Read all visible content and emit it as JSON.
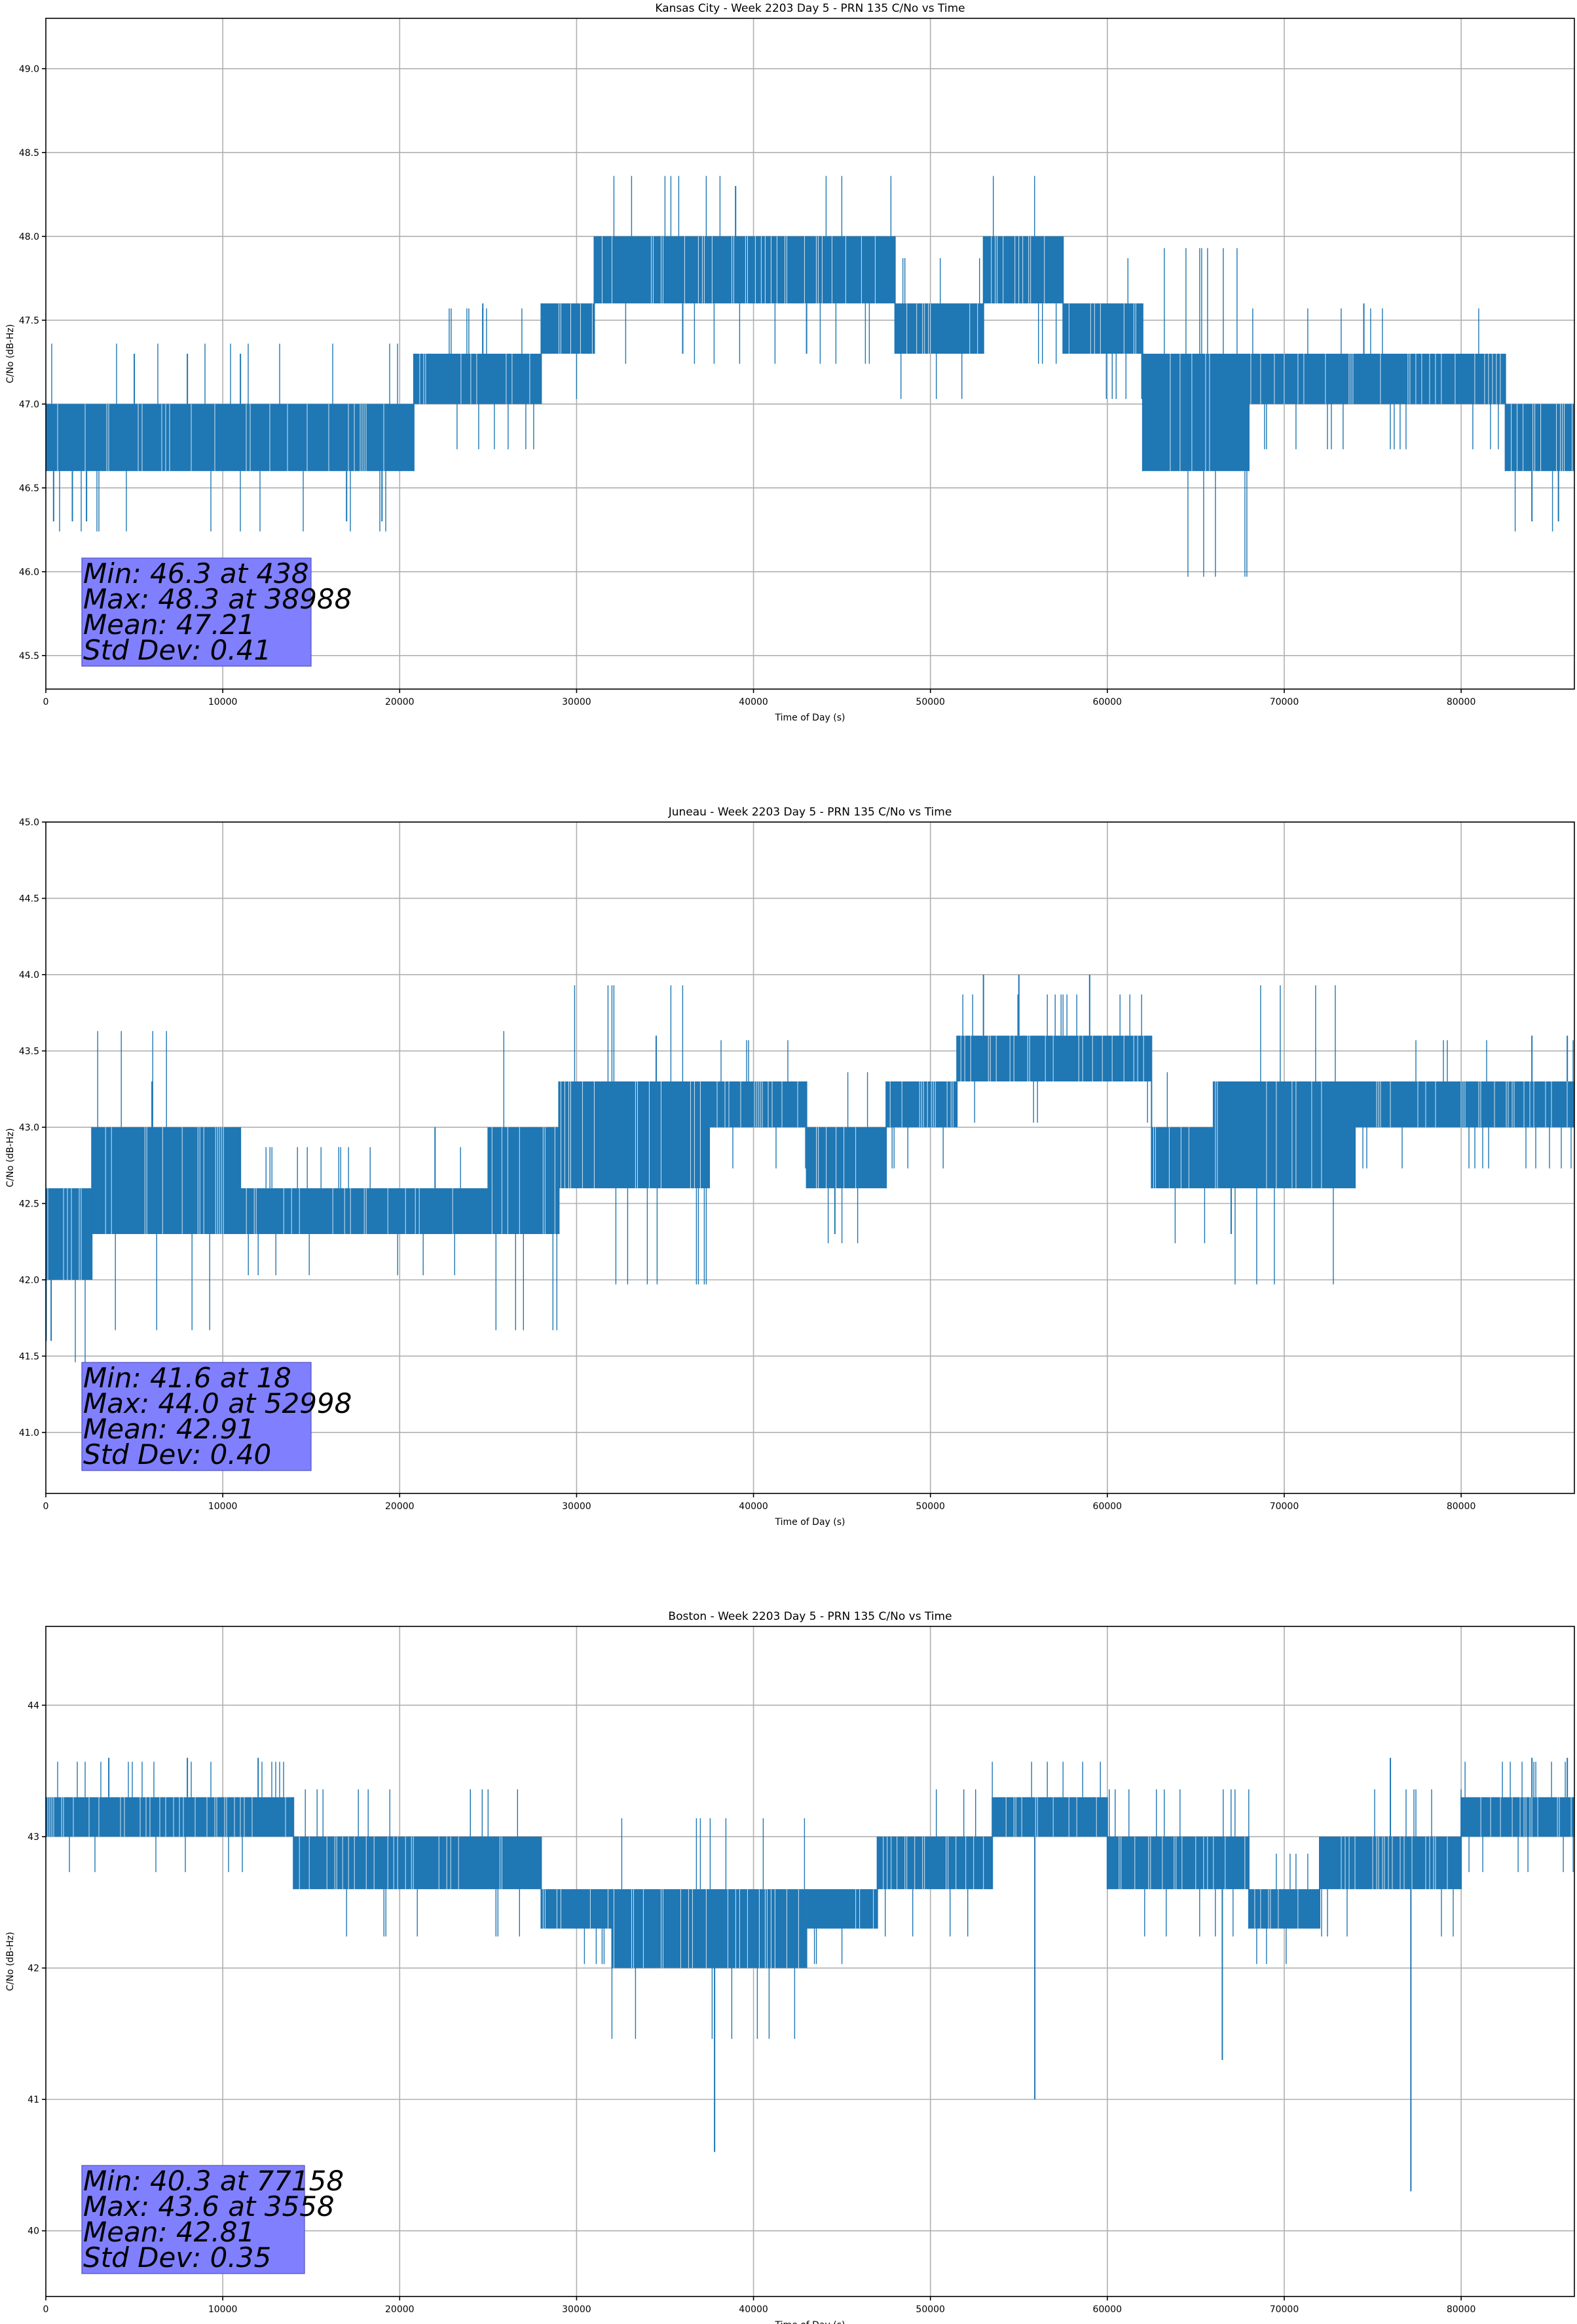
{
  "figure": {
    "line_color": "#1f77b4",
    "stats_box_color": "#8080ff"
  },
  "chart_data": [
    {
      "type": "line",
      "title": "Kansas City - Week 2203 Day 5 - PRN 135 C/No vs Time",
      "xlabel": "Time of Day (s)",
      "ylabel": "C/No (dB-Hz)",
      "xlim": [
        0,
        86400
      ],
      "ylim": [
        45.3,
        49.3
      ],
      "xticks": [
        0,
        10000,
        20000,
        30000,
        40000,
        50000,
        60000,
        70000,
        80000
      ],
      "xtick_labels": [
        "0",
        "10000",
        "20000",
        "30000",
        "40000",
        "50000",
        "60000",
        "70000",
        "80000"
      ],
      "yticks": [
        45.5,
        46.0,
        46.5,
        47.0,
        47.5,
        48.0,
        48.5,
        49.0
      ],
      "ytick_labels": [
        "45.5",
        "46.0",
        "46.5",
        "47.0",
        "47.5",
        "48.0",
        "48.5",
        "49.0"
      ],
      "grid": true,
      "series": [
        {
          "name": "C/No",
          "bands": [
            {
              "x0": 0,
              "x1": 20800,
              "lo": 46.6,
              "hi": 47.0
            },
            {
              "x0": 20800,
              "x1": 28000,
              "lo": 47.0,
              "hi": 47.3
            },
            {
              "x0": 28000,
              "x1": 31000,
              "lo": 47.3,
              "hi": 47.6
            },
            {
              "x0": 31000,
              "x1": 48000,
              "lo": 47.6,
              "hi": 48.0
            },
            {
              "x0": 48000,
              "x1": 53000,
              "lo": 47.3,
              "hi": 47.6
            },
            {
              "x0": 53000,
              "x1": 57500,
              "lo": 47.6,
              "hi": 48.0
            },
            {
              "x0": 57500,
              "x1": 62000,
              "lo": 47.3,
              "hi": 47.6
            },
            {
              "x0": 62000,
              "x1": 68000,
              "lo": 46.6,
              "hi": 47.3
            },
            {
              "x0": 68000,
              "x1": 82500,
              "lo": 47.0,
              "hi": 47.3
            },
            {
              "x0": 82500,
              "x1": 86400,
              "lo": 46.6,
              "hi": 47.0
            }
          ],
          "spikes": [
            {
              "x": 438,
              "y": 46.3
            },
            {
              "x": 1500,
              "y": 46.3
            },
            {
              "x": 2300,
              "y": 46.3
            },
            {
              "x": 5000,
              "y": 47.3
            },
            {
              "x": 8000,
              "y": 47.3
            },
            {
              "x": 11000,
              "y": 47.3
            },
            {
              "x": 17000,
              "y": 46.3
            },
            {
              "x": 19000,
              "y": 46.3
            },
            {
              "x": 24700,
              "y": 47.6
            },
            {
              "x": 38988,
              "y": 48.3
            },
            {
              "x": 36000,
              "y": 47.3
            },
            {
              "x": 43000,
              "y": 47.3
            },
            {
              "x": 74500,
              "y": 47.6
            },
            {
              "x": 84000,
              "y": 46.3
            },
            {
              "x": 85500,
              "y": 46.3
            }
          ]
        }
      ],
      "stats": [
        "Min: 46.3 at 438",
        "Max: 48.3 at 38988",
        "Mean: 47.21",
        "Std Dev: 0.41"
      ]
    },
    {
      "type": "line",
      "title": "Juneau - Week 2203 Day 5 - PRN 135 C/No vs Time",
      "xlabel": "Time of Day (s)",
      "ylabel": "C/No (dB-Hz)",
      "xlim": [
        0,
        86400
      ],
      "ylim": [
        40.6,
        45.0
      ],
      "xticks": [
        0,
        10000,
        20000,
        30000,
        40000,
        50000,
        60000,
        70000,
        80000
      ],
      "xtick_labels": [
        "0",
        "10000",
        "20000",
        "30000",
        "40000",
        "50000",
        "60000",
        "70000",
        "80000"
      ],
      "yticks": [
        41.0,
        41.5,
        42.0,
        42.5,
        43.0,
        43.5,
        44.0,
        44.5,
        45.0
      ],
      "ytick_labels": [
        "41.0",
        "41.5",
        "42.0",
        "42.5",
        "43.0",
        "43.5",
        "44.0",
        "44.5",
        "45.0"
      ],
      "grid": true,
      "series": [
        {
          "name": "C/No",
          "bands": [
            {
              "x0": 0,
              "x1": 2600,
              "lo": 42.0,
              "hi": 42.6
            },
            {
              "x0": 2600,
              "x1": 11000,
              "lo": 42.3,
              "hi": 43.0
            },
            {
              "x0": 11000,
              "x1": 25000,
              "lo": 42.3,
              "hi": 42.6
            },
            {
              "x0": 25000,
              "x1": 29000,
              "lo": 42.3,
              "hi": 43.0
            },
            {
              "x0": 29000,
              "x1": 37500,
              "lo": 42.6,
              "hi": 43.3
            },
            {
              "x0": 37500,
              "x1": 43000,
              "lo": 43.0,
              "hi": 43.3
            },
            {
              "x0": 43000,
              "x1": 47500,
              "lo": 42.6,
              "hi": 43.0
            },
            {
              "x0": 47500,
              "x1": 51500,
              "lo": 43.0,
              "hi": 43.3
            },
            {
              "x0": 51500,
              "x1": 62500,
              "lo": 43.3,
              "hi": 43.6
            },
            {
              "x0": 62500,
              "x1": 66000,
              "lo": 42.6,
              "hi": 43.0
            },
            {
              "x0": 66000,
              "x1": 74000,
              "lo": 42.6,
              "hi": 43.3
            },
            {
              "x0": 74000,
              "x1": 86400,
              "lo": 43.0,
              "hi": 43.3
            }
          ],
          "spikes": [
            {
              "x": 18,
              "y": 41.6
            },
            {
              "x": 300,
              "y": 41.6
            },
            {
              "x": 6000,
              "y": 43.3
            },
            {
              "x": 22000,
              "y": 43.0
            },
            {
              "x": 34500,
              "y": 43.6
            },
            {
              "x": 44600,
              "y": 42.3
            },
            {
              "x": 52998,
              "y": 44.0
            },
            {
              "x": 55000,
              "y": 44.0
            },
            {
              "x": 59000,
              "y": 44.0
            },
            {
              "x": 67000,
              "y": 42.3
            },
            {
              "x": 84000,
              "y": 43.6
            },
            {
              "x": 86000,
              "y": 43.6
            }
          ]
        }
      ],
      "stats": [
        "Min: 41.6 at 18",
        "Max: 44.0 at 52998",
        "Mean: 42.91",
        "Std Dev: 0.40"
      ]
    },
    {
      "type": "line",
      "title": "Boston - Week 2203 Day 5 - PRN 135 C/No vs Time",
      "xlabel": "Time of Day (s)",
      "ylabel": "C/No (dB-Hz)",
      "xlim": [
        0,
        86400
      ],
      "ylim": [
        39.5,
        44.6
      ],
      "xticks": [
        0,
        10000,
        20000,
        30000,
        40000,
        50000,
        60000,
        70000,
        80000
      ],
      "xtick_labels": [
        "0",
        "10000",
        "20000",
        "30000",
        "40000",
        "50000",
        "60000",
        "70000",
        "80000"
      ],
      "yticks": [
        40,
        41,
        42,
        43,
        44
      ],
      "ytick_labels": [
        "40",
        "41",
        "42",
        "43",
        "44"
      ],
      "grid": true,
      "series": [
        {
          "name": "C/No",
          "bands": [
            {
              "x0": 0,
              "x1": 14000,
              "lo": 43.0,
              "hi": 43.3
            },
            {
              "x0": 14000,
              "x1": 24000,
              "lo": 42.6,
              "hi": 43.0
            },
            {
              "x0": 24000,
              "x1": 28000,
              "lo": 42.6,
              "hi": 43.0
            },
            {
              "x0": 28000,
              "x1": 32000,
              "lo": 42.3,
              "hi": 42.6
            },
            {
              "x0": 32000,
              "x1": 43000,
              "lo": 42.0,
              "hi": 42.6
            },
            {
              "x0": 43000,
              "x1": 47000,
              "lo": 42.3,
              "hi": 42.6
            },
            {
              "x0": 47000,
              "x1": 53500,
              "lo": 42.6,
              "hi": 43.0
            },
            {
              "x0": 53500,
              "x1": 60000,
              "lo": 43.0,
              "hi": 43.3
            },
            {
              "x0": 60000,
              "x1": 68000,
              "lo": 42.6,
              "hi": 43.0
            },
            {
              "x0": 68000,
              "x1": 72000,
              "lo": 42.3,
              "hi": 42.6
            },
            {
              "x0": 72000,
              "x1": 80000,
              "lo": 42.6,
              "hi": 43.0
            },
            {
              "x0": 80000,
              "x1": 86400,
              "lo": 43.0,
              "hi": 43.3
            }
          ],
          "spikes": [
            {
              "x": 3558,
              "y": 43.6
            },
            {
              "x": 8000,
              "y": 43.6
            },
            {
              "x": 12000,
              "y": 43.6
            },
            {
              "x": 37800,
              "y": 40.6
            },
            {
              "x": 55900,
              "y": 41.0
            },
            {
              "x": 66500,
              "y": 41.3
            },
            {
              "x": 77158,
              "y": 40.3
            },
            {
              "x": 76000,
              "y": 43.6
            },
            {
              "x": 84000,
              "y": 43.6
            },
            {
              "x": 86000,
              "y": 43.6
            }
          ]
        }
      ],
      "stats": [
        "Min: 40.3 at 77158",
        "Max: 43.6 at 3558",
        "Mean: 42.81",
        "Std Dev: 0.35"
      ]
    }
  ]
}
